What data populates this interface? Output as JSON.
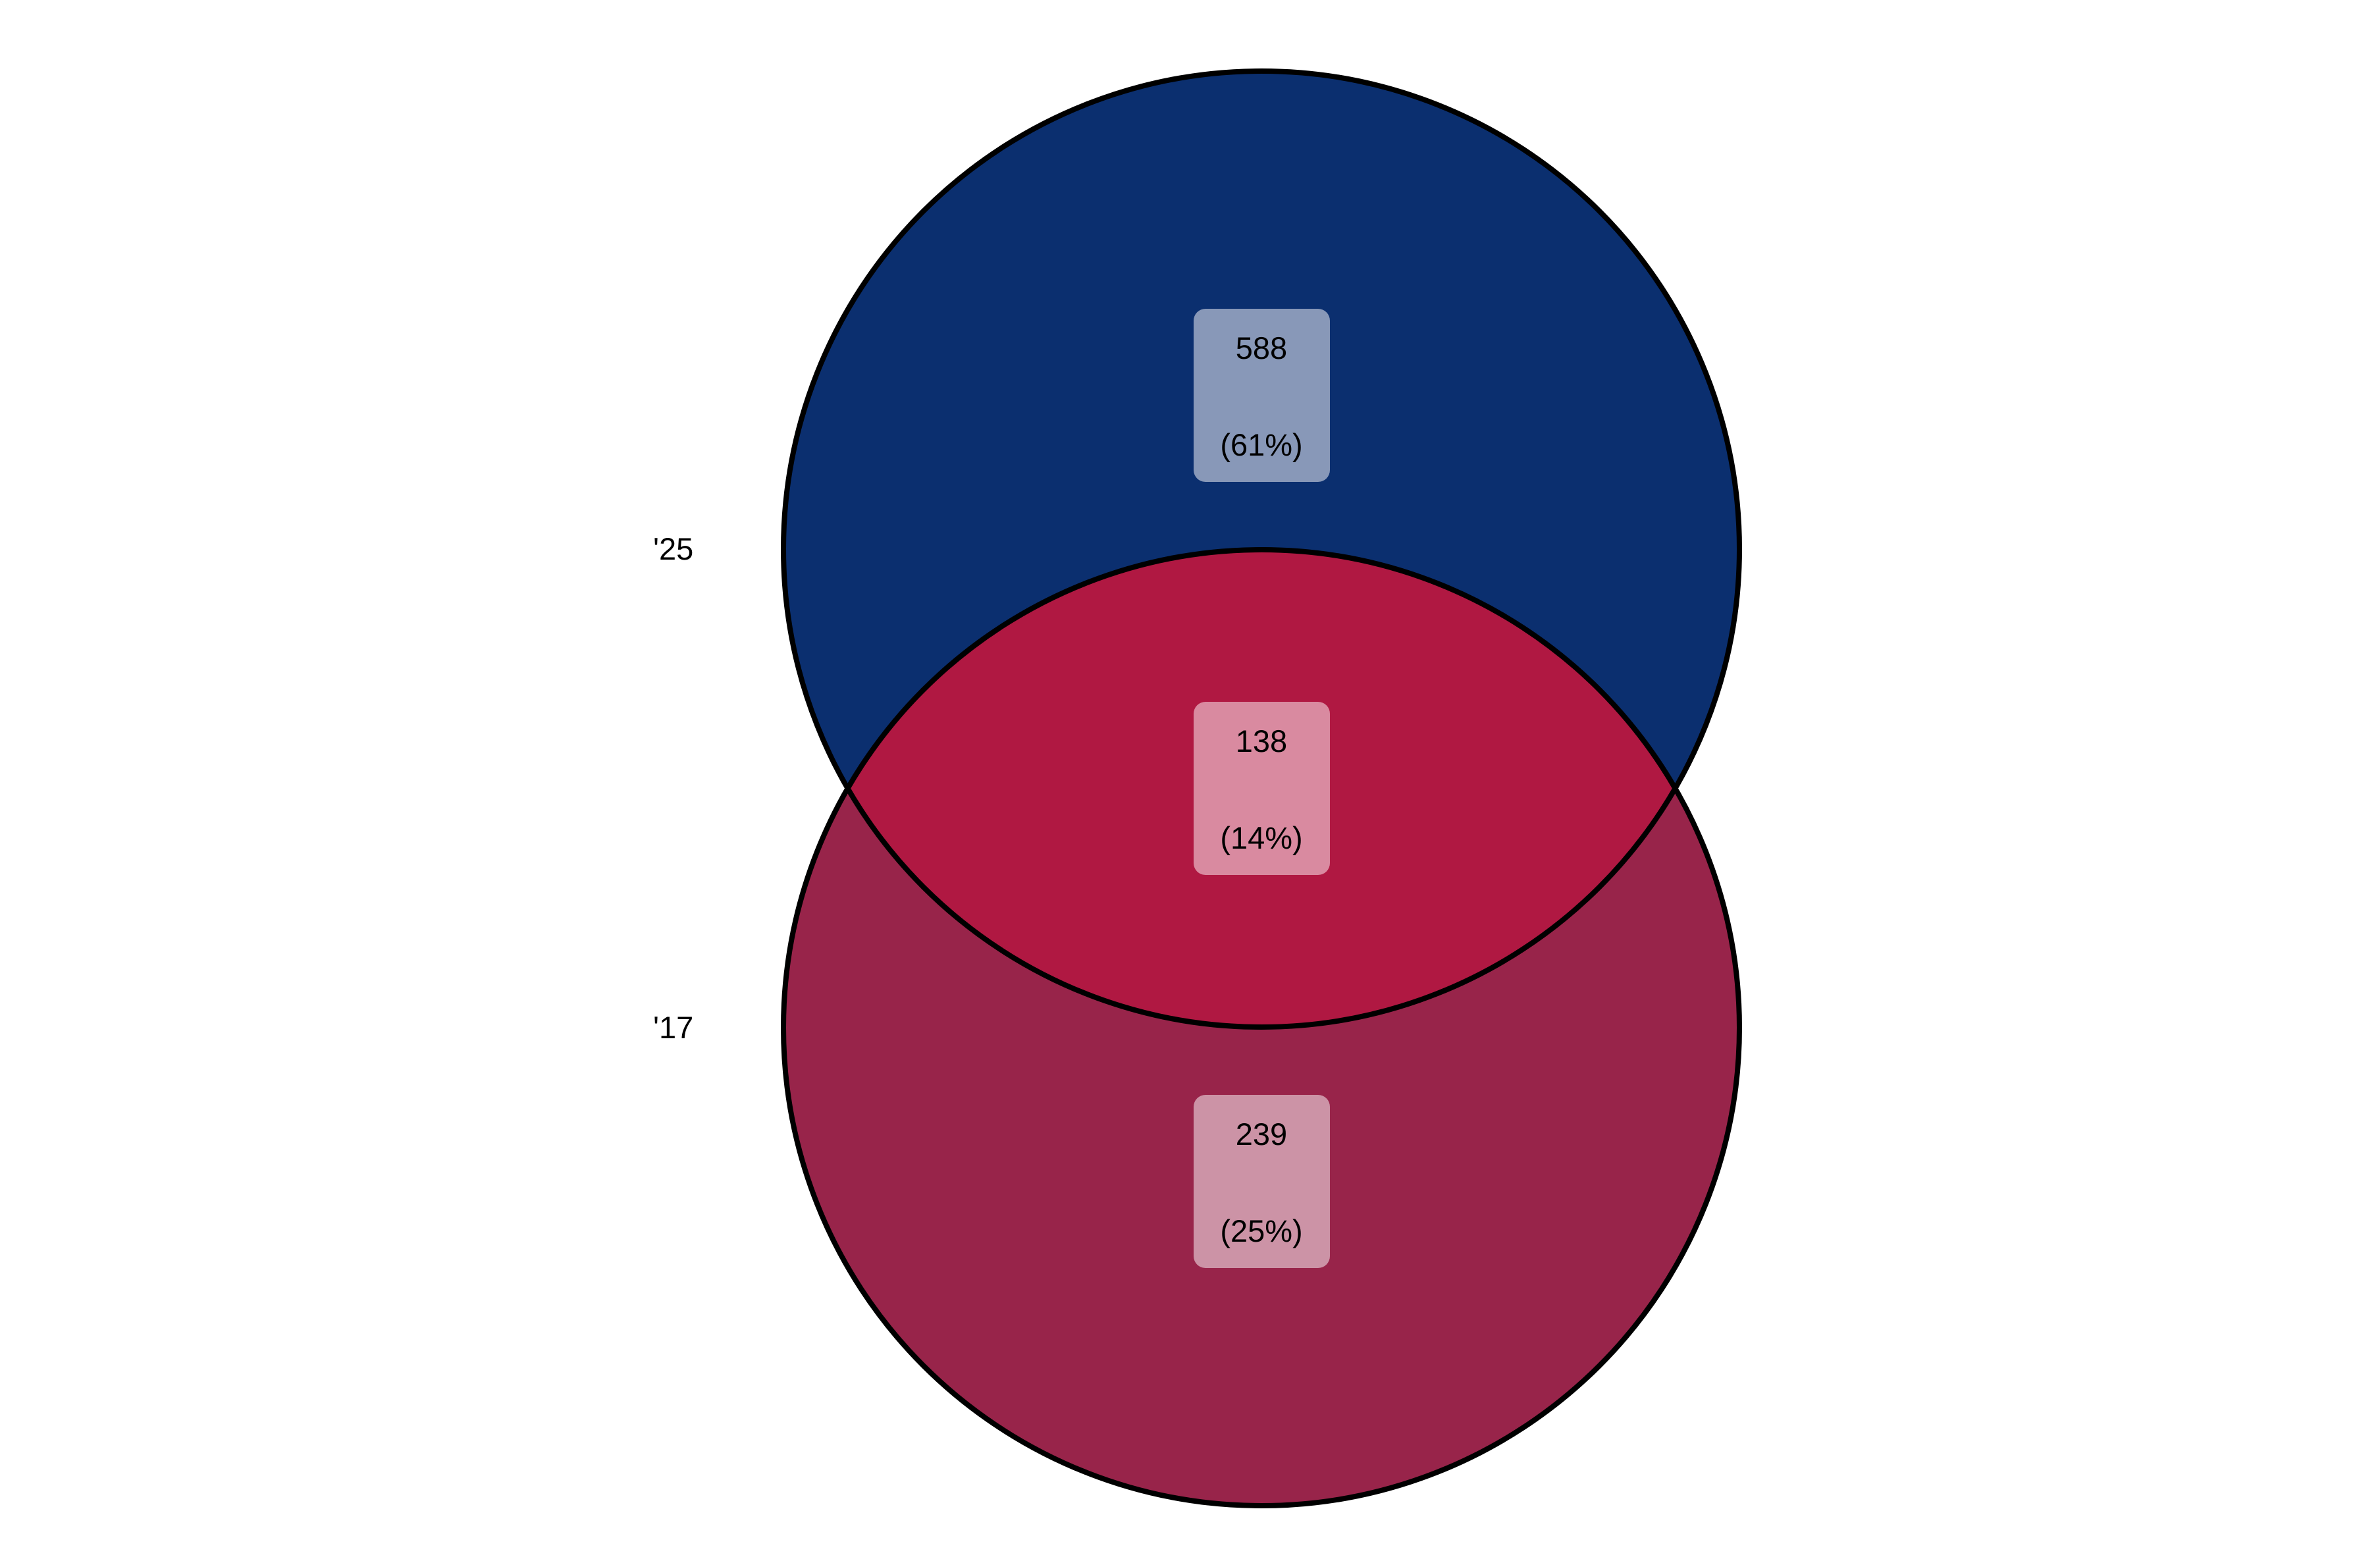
{
  "diagram": {
    "type": "venn2",
    "sets": [
      {
        "key": "top",
        "label": "'25",
        "color": "#0b2f6f"
      },
      {
        "key": "bottom",
        "label": "'17",
        "color": "#98244a"
      }
    ],
    "intersection_color": "#b01842",
    "outline_color": "#000000",
    "regions": [
      {
        "key": "top_only",
        "count": "588",
        "percent": "(61%)",
        "box_color": "#8898b8"
      },
      {
        "key": "both",
        "count": "138",
        "percent": "(14%)",
        "box_color": "#d98aa0"
      },
      {
        "key": "bottom_only",
        "count": "239",
        "percent": "(25%)",
        "box_color": "#cc93a6"
      }
    ]
  }
}
